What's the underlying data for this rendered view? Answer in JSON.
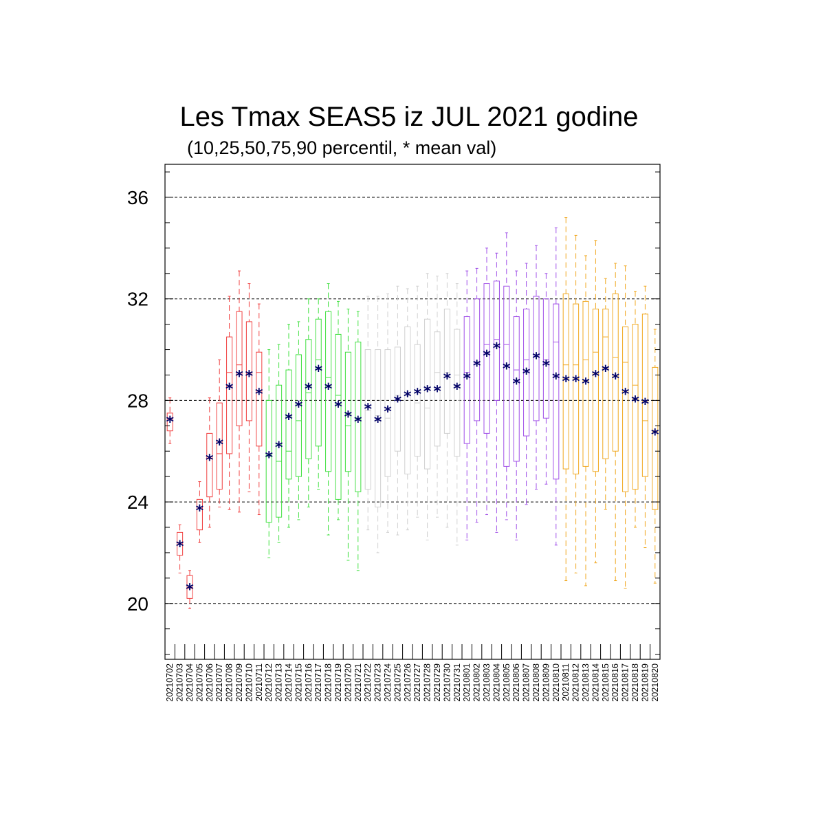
{
  "chart_data": {
    "type": "box",
    "title": "Les Tmax SEAS5 iz JUL 2021 godine",
    "subtitle": "(10,25,50,75,90 percentil, * mean val)",
    "ylim": [
      17.8,
      37.3
    ],
    "yticks": [
      20,
      24,
      28,
      32,
      36
    ],
    "grid": "horizontal dashed at y ticks",
    "marker_color": "#000066",
    "colors": {
      "red": "#f04040",
      "green": "#40e040",
      "grey": "#d0d0d0",
      "purple": "#a050e8",
      "orange": "#f0a820"
    },
    "categories": [
      "20210702",
      "20210703",
      "20210704",
      "20210705",
      "20210706",
      "20210707",
      "20210708",
      "20210709",
      "20210710",
      "20210711",
      "20210712",
      "20210713",
      "20210714",
      "20210715",
      "20210716",
      "20210717",
      "20210718",
      "20210719",
      "20210720",
      "20210721",
      "20210722",
      "20210723",
      "20210724",
      "20210725",
      "20210726",
      "20210727",
      "20210728",
      "20210729",
      "20210730",
      "20210731",
      "20210801",
      "20210802",
      "20210803",
      "20210804",
      "20210805",
      "20210806",
      "20210807",
      "20210808",
      "20210809",
      "20210810",
      "20210811",
      "20210812",
      "20210813",
      "20210814",
      "20210815",
      "20210816",
      "20210817",
      "20210818",
      "20210819",
      "20210820"
    ],
    "series": [
      {
        "color_group": "red",
        "p10": [
          26.3,
          21.2,
          19.8,
          22.4,
          23.0,
          23.8,
          23.7,
          23.6,
          24.4,
          23.5
        ],
        "p25": [
          26.8,
          21.9,
          20.2,
          22.9,
          24.2,
          24.5,
          25.9,
          27.0,
          27.2,
          26.2
        ],
        "p50": [
          27.3,
          22.4,
          20.6,
          23.8,
          25.7,
          25.9,
          29.1,
          29.4,
          29.1,
          29.1
        ],
        "p75": [
          27.5,
          22.8,
          21.1,
          24.1,
          26.7,
          27.9,
          30.5,
          31.5,
          31.1,
          29.9
        ],
        "p90": [
          28.1,
          23.1,
          21.3,
          24.8,
          28.1,
          29.6,
          32.1,
          33.1,
          32.6,
          31.8
        ],
        "mean": [
          27.2,
          22.3,
          20.6,
          23.7,
          25.7,
          26.3,
          28.5,
          29.0,
          29.0,
          28.3
        ]
      },
      {
        "color_group": "green",
        "p10": [
          21.8,
          22.4,
          23.0,
          23.3,
          23.8,
          24.5,
          22.7,
          23.3,
          21.7,
          21.3
        ],
        "p25": [
          23.2,
          23.4,
          24.9,
          25.0,
          25.7,
          26.2,
          25.2,
          24.1,
          25.2,
          24.4
        ],
        "p50": [
          25.8,
          25.6,
          26.0,
          27.2,
          28.3,
          29.6,
          28.9,
          28.2,
          27.0,
          27.3
        ],
        "p75": [
          28.0,
          28.6,
          29.2,
          29.8,
          30.4,
          31.2,
          31.5,
          30.6,
          29.9,
          30.3
        ],
        "p90": [
          30.0,
          30.2,
          31.0,
          31.1,
          32.0,
          32.0,
          32.6,
          31.9,
          31.6,
          31.5
        ],
        "mean": [
          25.8,
          26.2,
          27.3,
          27.8,
          28.5,
          29.2,
          28.5,
          27.8,
          27.4,
          27.2
        ]
      },
      {
        "color_group": "grey",
        "p10": [
          22.9,
          22.0,
          22.8,
          22.7,
          22.9,
          23.4,
          22.5,
          23.4,
          23.0,
          22.3
        ],
        "p25": [
          24.5,
          23.8,
          25.0,
          26.0,
          25.1,
          25.8,
          25.3,
          26.2,
          26.7,
          25.8
        ],
        "p50": [
          27.6,
          27.4,
          27.3,
          28.2,
          28.2,
          27.9,
          27.7,
          29.1,
          29.1,
          29.0
        ],
        "p75": [
          30.0,
          30.0,
          30.0,
          30.1,
          30.9,
          30.2,
          31.2,
          30.7,
          31.6,
          30.8
        ],
        "p90": [
          32.1,
          32.1,
          32.2,
          32.5,
          32.4,
          32.5,
          33.0,
          32.9,
          33.0,
          32.6
        ],
        "mean": [
          27.7,
          27.2,
          27.6,
          28.0,
          28.2,
          28.3,
          28.4,
          28.4,
          28.9,
          28.5
        ]
      },
      {
        "color_group": "purple",
        "p10": [
          22.5,
          23.2,
          23.5,
          22.8,
          23.3,
          22.5,
          23.9,
          24.5,
          24.7,
          22.3
        ],
        "p25": [
          26.3,
          27.2,
          26.7,
          28.0,
          25.4,
          25.6,
          26.6,
          27.2,
          27.3,
          24.9
        ],
        "p50": [
          29.1,
          29.5,
          30.2,
          30.4,
          30.2,
          29.2,
          29.6,
          29.8,
          29.6,
          30.3
        ],
        "p75": [
          31.3,
          32.0,
          32.6,
          32.7,
          32.5,
          31.3,
          31.6,
          32.1,
          32.0,
          31.8
        ],
        "p90": [
          33.1,
          33.2,
          34.0,
          33.8,
          34.6,
          33.1,
          33.4,
          34.1,
          33.0,
          34.8
        ],
        "mean": [
          28.9,
          29.4,
          29.8,
          30.1,
          29.3,
          28.7,
          29.1,
          29.7,
          29.4,
          28.9
        ]
      },
      {
        "color_group": "orange",
        "p10": [
          20.9,
          21.2,
          20.7,
          21.6,
          23.7,
          20.9,
          20.6,
          23.0,
          22.2,
          20.8
        ],
        "p25": [
          25.3,
          25.1,
          25.4,
          25.2,
          25.7,
          26.0,
          24.4,
          24.5,
          25.0,
          23.7
        ],
        "p50": [
          29.4,
          29.4,
          29.6,
          29.9,
          30.5,
          29.7,
          29.5,
          28.6,
          27.2,
          26.8
        ],
        "p75": [
          32.2,
          31.8,
          31.9,
          31.6,
          31.6,
          32.2,
          30.9,
          31.0,
          31.4,
          29.3
        ],
        "p90": [
          35.2,
          34.5,
          33.7,
          34.3,
          32.8,
          33.4,
          33.3,
          32.3,
          32.5,
          30.8
        ],
        "mean": [
          28.8,
          28.8,
          28.7,
          29.0,
          29.2,
          28.9,
          28.3,
          28.0,
          27.9,
          26.7
        ]
      }
    ]
  }
}
